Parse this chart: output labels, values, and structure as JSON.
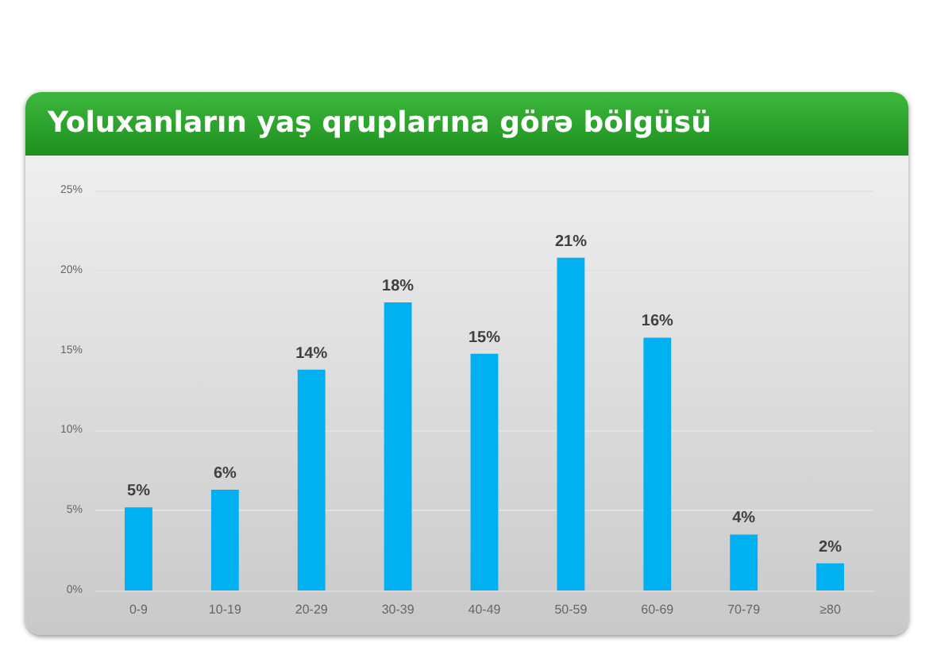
{
  "chart_data": {
    "type": "bar",
    "title": "Yoluxanların yaş qruplarına görə bölgüsü",
    "categories": [
      "0-9",
      "10-19",
      "20-29",
      "30-39",
      "40-49",
      "50-59",
      "60-69",
      "70-79",
      "≥80"
    ],
    "values": [
      5.2,
      6.3,
      13.8,
      18,
      14.8,
      20.8,
      15.8,
      3.5,
      1.7
    ],
    "value_labels": [
      "5%",
      "6%",
      "14%",
      "18%",
      "15%",
      "21%",
      "16%",
      "4%",
      "2%"
    ],
    "color": "#00b0f0",
    "ylim": [
      0,
      25
    ],
    "yticks": [
      {
        "value": 0,
        "label": "0%"
      },
      {
        "value": 5,
        "label": "5%"
      },
      {
        "value": 10,
        "label": "10%"
      },
      {
        "value": 15,
        "label": "15%"
      },
      {
        "value": 20,
        "label": "20%"
      },
      {
        "value": 25,
        "label": "25%"
      }
    ],
    "grid": "y"
  }
}
